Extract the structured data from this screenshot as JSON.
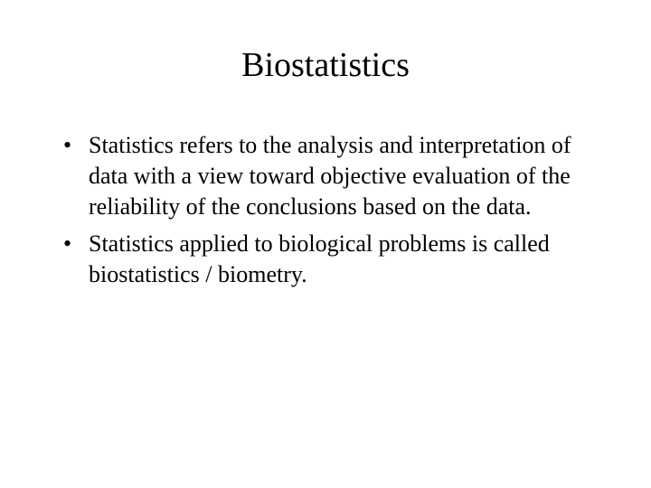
{
  "slide": {
    "title": "Biostatistics",
    "title_fontsize": 38,
    "body_fontsize": 26,
    "font_family": "Times New Roman",
    "text_color": "#000000",
    "background_color": "#ffffff",
    "bullets": [
      "Statistics refers to the analysis and interpretation of data with a view toward objective evaluation of the reliability of the conclusions based on the data.",
      "Statistics applied to biological problems is called biostatistics / biometry."
    ]
  }
}
